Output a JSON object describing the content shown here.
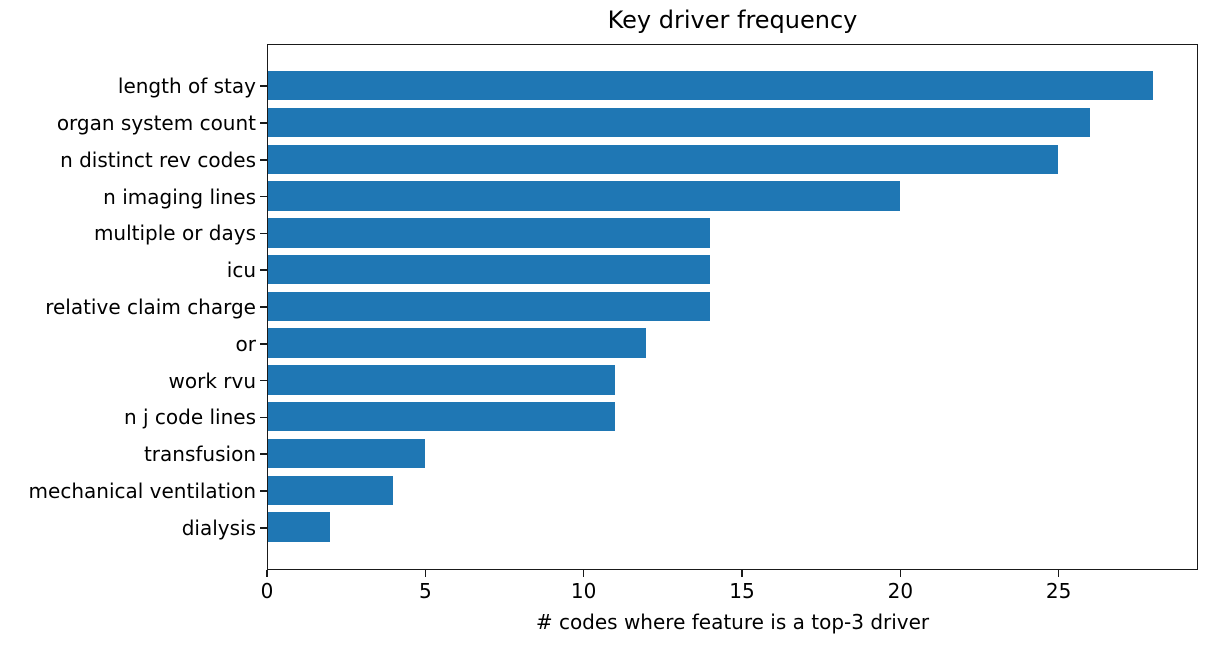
{
  "chart_data": {
    "type": "bar",
    "orientation": "horizontal",
    "title": "Key driver frequency",
    "xlabel": "# codes where feature is a top-3 driver",
    "ylabel": "",
    "categories": [
      "length of stay",
      "organ system count",
      "n distinct rev codes",
      "n imaging lines",
      "multiple or days",
      "icu",
      "relative claim charge",
      "or",
      "work rvu",
      "n j code lines",
      "transfusion",
      "mechanical ventilation",
      "dialysis"
    ],
    "values": [
      28,
      26,
      25,
      20,
      14,
      14,
      14,
      12,
      11,
      11,
      5,
      4,
      2
    ],
    "xticks": [
      0,
      5,
      10,
      15,
      20,
      25
    ],
    "xlim": [
      0,
      29.4
    ],
    "grid": false,
    "legend": null,
    "bar_color": "#1f77b4",
    "axis_color": "#1a1a1a"
  }
}
